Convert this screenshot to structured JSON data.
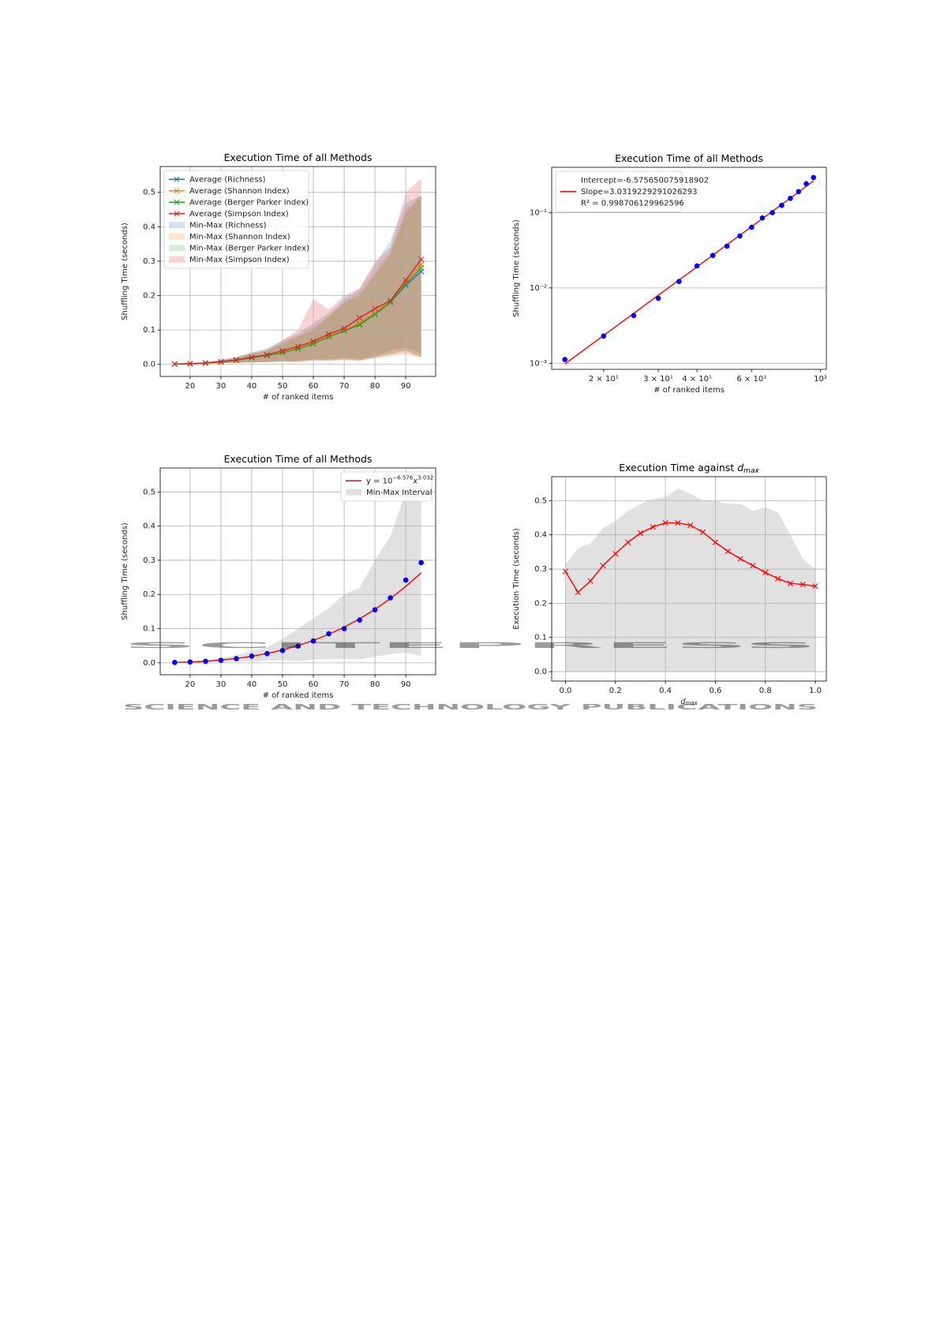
{
  "chart_data": [
    {
      "type": "line",
      "title": "Execution Time of all Methods",
      "xlabel": "# of ranked items",
      "ylabel": "Shuffling Time (seconds)",
      "x": [
        15,
        20,
        25,
        30,
        35,
        40,
        45,
        50,
        55,
        60,
        65,
        70,
        75,
        80,
        85,
        90,
        95
      ],
      "xlim": [
        10.3,
        99.7
      ],
      "ylim": [
        -0.035,
        0.575
      ],
      "xticks": [
        20,
        30,
        40,
        50,
        60,
        70,
        80,
        90
      ],
      "yticks": [
        {
          "value": 0,
          "label": "0.0"
        },
        0.1,
        0.2,
        0.3,
        0.4,
        0.5
      ],
      "grid": "both",
      "legend": "upper left",
      "series": [
        {
          "name": "Average (Richness)",
          "color": "#1f77b4",
          "marker": "x",
          "linestyle": "-",
          "values": [
            0.001,
            0.002,
            0.004,
            0.007,
            0.012,
            0.019,
            0.026,
            0.035,
            0.046,
            0.061,
            0.081,
            0.098,
            0.117,
            0.147,
            0.18,
            0.23,
            0.27
          ]
        },
        {
          "name": "Average (Shannon Index)",
          "color": "#ff7f0e",
          "marker": "x",
          "linestyle": "-",
          "values": [
            0.001,
            0.002,
            0.004,
            0.007,
            0.012,
            0.019,
            0.026,
            0.036,
            0.047,
            0.063,
            0.083,
            0.1,
            0.12,
            0.15,
            0.185,
            0.24,
            0.29
          ]
        },
        {
          "name": "Average (Berger Parker Index)",
          "color": "#2ca02c",
          "marker": "x",
          "linestyle": "-",
          "values": [
            0.001,
            0.002,
            0.004,
            0.007,
            0.012,
            0.019,
            0.026,
            0.034,
            0.045,
            0.06,
            0.08,
            0.097,
            0.115,
            0.145,
            0.18,
            0.235,
            0.28
          ]
        },
        {
          "name": "Average (Simpson Index)",
          "color": "#d62728",
          "marker": "x",
          "linestyle": "-",
          "values": [
            0.001,
            0.002,
            0.004,
            0.008,
            0.013,
            0.021,
            0.028,
            0.04,
            0.052,
            0.067,
            0.088,
            0.105,
            0.135,
            0.162,
            0.185,
            0.245,
            0.305
          ]
        }
      ],
      "bands": [
        {
          "name": "Min-Max (Richness)",
          "color": "#1f77b4",
          "alpha": 0.2,
          "min": [
            0,
            0.001,
            0.002,
            0.003,
            0.005,
            0.006,
            0.008,
            0.01,
            0.01,
            0.015,
            0.015,
            0.02,
            0.015,
            0.025,
            0.04,
            0.05,
            0.03
          ],
          "max": [
            0.001,
            0.003,
            0.006,
            0.012,
            0.02,
            0.035,
            0.045,
            0.07,
            0.09,
            0.12,
            0.15,
            0.19,
            0.22,
            0.29,
            0.36,
            0.47,
            0.49
          ]
        },
        {
          "name": "Min-Max (Shannon Index)",
          "color": "#ff7f0e",
          "alpha": 0.2,
          "min": [
            0,
            0.001,
            0.002,
            0.003,
            0.005,
            0.006,
            0.007,
            0.009,
            0.009,
            0.013,
            0.012,
            0.015,
            0.012,
            0.02,
            0.03,
            0.04,
            0.02
          ],
          "max": [
            0.001,
            0.003,
            0.006,
            0.012,
            0.02,
            0.03,
            0.04,
            0.065,
            0.085,
            0.11,
            0.14,
            0.18,
            0.21,
            0.27,
            0.33,
            0.45,
            0.49
          ]
        },
        {
          "name": "Min-Max (Berger Parker Index)",
          "color": "#2ca02c",
          "alpha": 0.2,
          "min": [
            0,
            0.001,
            0.002,
            0.003,
            0.005,
            0.006,
            0.007,
            0.009,
            0.009,
            0.013,
            0.012,
            0.015,
            0.012,
            0.02,
            0.03,
            0.04,
            0.02
          ],
          "max": [
            0.001,
            0.003,
            0.006,
            0.012,
            0.02,
            0.03,
            0.04,
            0.06,
            0.08,
            0.1,
            0.14,
            0.18,
            0.2,
            0.26,
            0.32,
            0.44,
            0.49
          ]
        },
        {
          "name": "Min-Max (Simpson Index)",
          "color": "#d62728",
          "alpha": 0.2,
          "min": [
            0,
            0.001,
            0.002,
            0.003,
            0.004,
            0.005,
            0.006,
            0.008,
            0.005,
            0.01,
            0.01,
            0.012,
            0.01,
            0.018,
            0.025,
            0.03,
            0.02
          ],
          "max": [
            0.001,
            0.003,
            0.007,
            0.014,
            0.022,
            0.035,
            0.045,
            0.07,
            0.1,
            0.19,
            0.16,
            0.2,
            0.22,
            0.3,
            0.34,
            0.5,
            0.54
          ]
        }
      ]
    },
    {
      "type": "scatter",
      "title": "Execution Time of all Methods",
      "xlabel": "# of ranked items",
      "ylabel": "Shuffling Time (seconds)",
      "x": [
        15,
        20,
        25,
        30,
        35,
        40,
        45,
        50,
        55,
        60,
        65,
        70,
        75,
        80,
        85,
        90,
        95
      ],
      "xscale": "log",
      "yscale": "log",
      "xlim": [
        13.6,
        104.5
      ],
      "ylim": [
        0.00083,
        0.4
      ],
      "xticks": [
        {
          "value": 20,
          "label": "2 × 10¹"
        },
        {
          "value": 30,
          "label": "3 × 10¹"
        },
        {
          "value": 40,
          "label": "4 × 10¹"
        },
        {
          "value": 60,
          "label": "6 × 10¹"
        },
        {
          "value": 100,
          "label": "10²"
        }
      ],
      "yticks": [
        {
          "value": 0.001,
          "label": "10⁻³"
        },
        {
          "value": 0.01,
          "label": "10⁻²"
        },
        {
          "value": 0.1,
          "label": "10⁻¹"
        }
      ],
      "grid": "y",
      "legend": "upper left",
      "series": [
        {
          "name": "Intercept=-6.575650075918902",
          "name_lines": [
            "Slope=3.0319229291026293",
            "R² = 0.998706129962596"
          ],
          "color": "#ff0000",
          "marker": "none",
          "linestyle": "-",
          "values": [
            0.000977,
            0.00234,
            0.0046,
            0.008,
            0.01275,
            0.0191,
            0.0273,
            0.0376,
            0.0502,
            0.0654,
            0.0833,
            0.1043,
            0.1286,
            0.1564,
            0.188,
            0.2235,
            0.2634
          ]
        },
        {
          "color": "#0000ff",
          "marker": "o",
          "linestyle": "none",
          "values": [
            0.00112,
            0.0023,
            0.0043,
            0.0073,
            0.0122,
            0.0196,
            0.027,
            0.036,
            0.049,
            0.064,
            0.085,
            0.1,
            0.125,
            0.155,
            0.19,
            0.242,
            0.293
          ]
        }
      ]
    },
    {
      "type": "scatter",
      "title": "Execution Time of all Methods",
      "xlabel": "# of ranked items",
      "ylabel": "Shuffling Time (seconds)",
      "x": [
        15,
        20,
        25,
        30,
        35,
        40,
        45,
        50,
        55,
        60,
        65,
        70,
        75,
        80,
        85,
        90,
        95
      ],
      "xlim": [
        10.3,
        99.7
      ],
      "ylim": [
        -0.035,
        0.57
      ],
      "xticks": [
        20,
        30,
        40,
        50,
        60,
        70,
        80,
        90
      ],
      "yticks": [
        {
          "value": 0,
          "label": "0.0"
        },
        0.1,
        0.2,
        0.3,
        0.4,
        0.5
      ],
      "grid": "both",
      "legend": "upper right",
      "series": [
        {
          "name": "y = 10",
          "name_sup": "−6.576",
          "name_var": "x",
          "name_var_sup": "3.032",
          "color": "#ff0000",
          "marker": "none",
          "linestyle": "-",
          "values": [
            0.000977,
            0.00234,
            0.0046,
            0.008,
            0.01275,
            0.0191,
            0.0273,
            0.0376,
            0.0502,
            0.0654,
            0.0833,
            0.1043,
            0.1286,
            0.1564,
            0.188,
            0.2235,
            0.2634
          ]
        },
        {
          "color": "#0000ff",
          "marker": "o",
          "linestyle": "none",
          "values": [
            0.00112,
            0.0023,
            0.0043,
            0.0073,
            0.0122,
            0.0196,
            0.027,
            0.036,
            0.049,
            0.064,
            0.085,
            0.1,
            0.125,
            0.155,
            0.19,
            0.242,
            0.293
          ]
        }
      ],
      "bands": [
        {
          "name": "Min-Max Interval",
          "color": "#c8c8c8",
          "alpha": 0.55,
          "min": [
            0,
            0.001,
            0.002,
            0.003,
            0.004,
            0.005,
            0.006,
            0.008,
            0.005,
            0.01,
            0.01,
            0.012,
            0.01,
            0.018,
            0.025,
            0.03,
            0.02
          ],
          "max": [
            0.001,
            0.003,
            0.007,
            0.014,
            0.022,
            0.035,
            0.045,
            0.07,
            0.1,
            0.13,
            0.16,
            0.2,
            0.22,
            0.3,
            0.37,
            0.5,
            0.54
          ]
        }
      ]
    },
    {
      "type": "line",
      "title": "Execution Time against ",
      "title_var": "d",
      "title_sub": "max",
      "xlabel": "d",
      "xlabel_sub": "max",
      "ylabel": "Execution Time (seconds)",
      "x": [
        0,
        0.05,
        0.1,
        0.15,
        0.2,
        0.25,
        0.3,
        0.35,
        0.4,
        0.45,
        0.5,
        0.55,
        0.6,
        0.65,
        0.7,
        0.75,
        0.8,
        0.85,
        0.9,
        0.95,
        1
      ],
      "xlim": [
        -0.055,
        1.044
      ],
      "ylim": [
        -0.0275,
        0.57
      ],
      "xticks": [
        {
          "value": 0,
          "label": "0.0"
        },
        0.2,
        0.4,
        0.6,
        0.8,
        {
          "value": 1,
          "label": "1.0"
        }
      ],
      "yticks": [
        {
          "value": 0,
          "label": "0.0"
        },
        0.1,
        0.2,
        0.3,
        0.4,
        0.5
      ],
      "grid": "both",
      "series": [
        {
          "color": "#ff0000",
          "marker": "x",
          "linestyle": "-",
          "values": [
            0.293,
            0.232,
            0.265,
            0.31,
            0.345,
            0.378,
            0.405,
            0.423,
            0.435,
            0.435,
            0.428,
            0.408,
            0.378,
            0.352,
            0.33,
            0.31,
            0.29,
            0.272,
            0.258,
            0.255,
            0.25
          ]
        }
      ],
      "bands": [
        {
          "color": "#c8c8c8",
          "alpha": 0.55,
          "min": [
            0,
            0,
            0,
            0,
            0,
            0,
            0,
            0,
            0,
            0,
            0,
            0,
            0,
            0,
            0,
            0,
            0,
            0,
            0,
            0,
            0
          ],
          "max": [
            0.315,
            0.36,
            0.375,
            0.42,
            0.44,
            0.47,
            0.49,
            0.505,
            0.51,
            0.535,
            0.52,
            0.5,
            0.5,
            0.49,
            0.49,
            0.47,
            0.48,
            0.465,
            0.4,
            0.33,
            0.3
          ]
        }
      ]
    }
  ],
  "watermark": {
    "title": "SCITEPRESS",
    "subtitle": "SCIENCE AND TECHNOLOGY PUBLICATIONS"
  }
}
